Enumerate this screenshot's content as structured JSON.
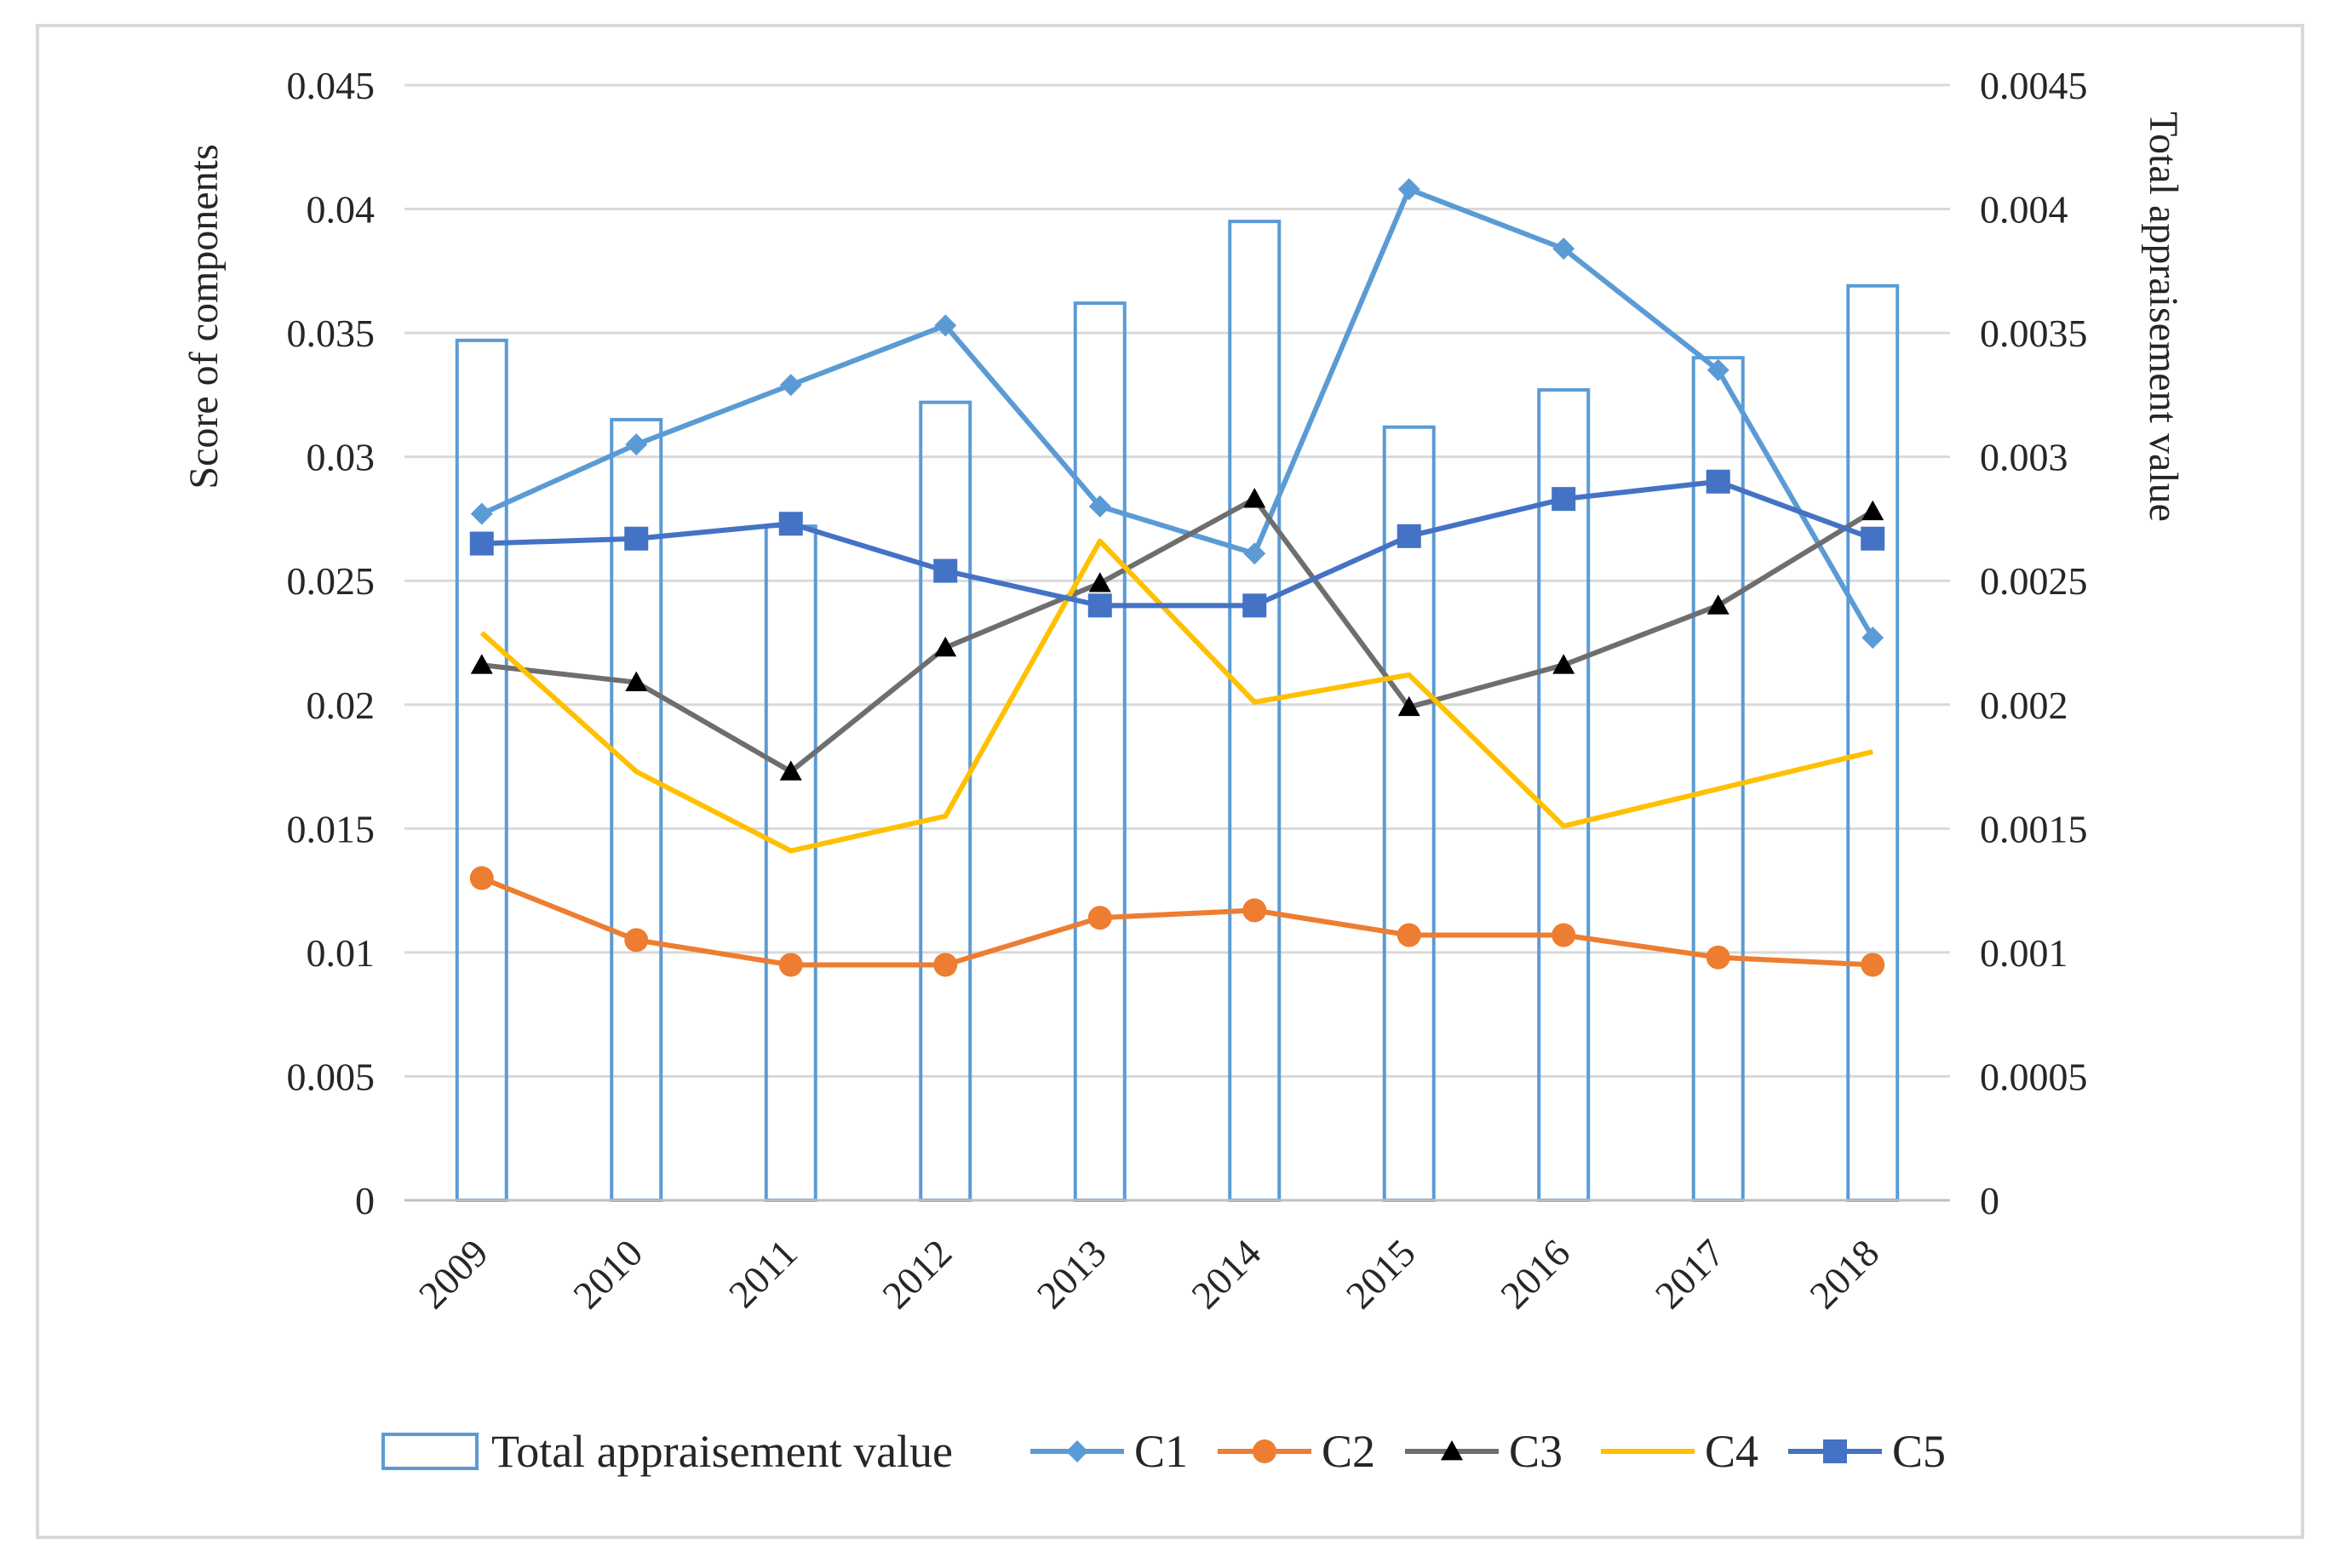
{
  "chart_data": {
    "type": "bar+line",
    "categories": [
      "2009",
      "2010",
      "2011",
      "2012",
      "2013",
      "2014",
      "2015",
      "2016",
      "2017",
      "2018"
    ],
    "bar_series": {
      "name": "Total appraisement value",
      "axis": "right",
      "values": [
        0.00347,
        0.00315,
        0.00272,
        0.00322,
        0.00362,
        0.00395,
        0.00312,
        0.00327,
        0.0034,
        0.00369
      ]
    },
    "series": [
      {
        "name": "C1",
        "color": "#5B9BD5",
        "marker": "diamond",
        "axis": "left",
        "values": [
          0.0277,
          0.0305,
          0.0329,
          0.0353,
          0.028,
          0.0261,
          0.0408,
          0.0384,
          0.0335,
          0.0227
        ]
      },
      {
        "name": "C2",
        "color": "#ED7D31",
        "marker": "circle",
        "axis": "left",
        "values": [
          0.013,
          0.0105,
          0.0095,
          0.0095,
          0.0114,
          0.0117,
          0.0107,
          0.0107,
          0.0098,
          0.0095
        ]
      },
      {
        "name": "C3",
        "color": "#6E6E6E",
        "marker": "triangle",
        "axis": "left",
        "values": [
          0.0216,
          0.0209,
          0.0173,
          0.0223,
          0.0249,
          0.0283,
          0.0199,
          0.0216,
          0.024,
          0.0278
        ]
      },
      {
        "name": "C4",
        "color": "#FFC000",
        "marker": "none",
        "axis": "left",
        "values": [
          0.0229,
          0.0173,
          0.0141,
          0.0155,
          0.0266,
          0.0201,
          0.0212,
          0.0151,
          0.0166,
          0.0181
        ]
      },
      {
        "name": "C5",
        "color": "#4472C4",
        "marker": "square",
        "axis": "left",
        "values": [
          0.0265,
          0.0267,
          0.0273,
          0.0254,
          0.024,
          0.024,
          0.0268,
          0.0283,
          0.029,
          0.0267
        ]
      }
    ],
    "y_left": {
      "label": "Score of components",
      "ylim": [
        0,
        0.045
      ],
      "ticks": [
        "0",
        "0.005",
        "0.01",
        "0.015",
        "0.02",
        "0.025",
        "0.03",
        "0.035",
        "0.04",
        "0.045"
      ]
    },
    "y_right": {
      "label": "Total appraisement value",
      "ylim": [
        0,
        0.0045
      ],
      "ticks": [
        "0",
        "0.0005",
        "0.001",
        "0.0015",
        "0.002",
        "0.0025",
        "0.003",
        "0.0035",
        "0.004",
        "0.0045"
      ]
    },
    "grid": true,
    "legend": "bottom",
    "title": "",
    "xlabel": ""
  }
}
